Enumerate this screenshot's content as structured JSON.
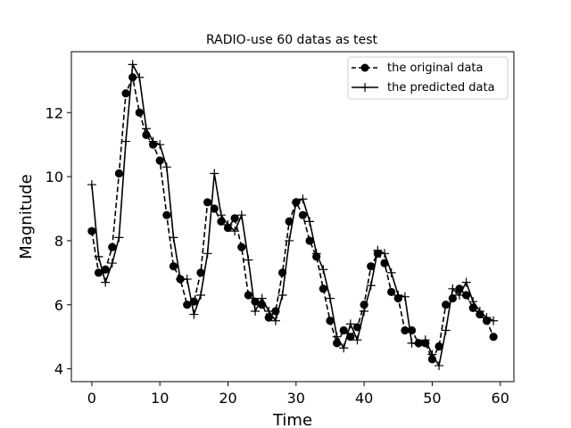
{
  "chart_data": {
    "type": "line",
    "title": "RADIO-use 60 datas as test",
    "xlabel": "Time",
    "ylabel": "Magnitude",
    "xlim": [
      -3,
      62
    ],
    "ylim": [
      3.6,
      13.9
    ],
    "xticks": [
      0,
      10,
      20,
      30,
      40,
      50,
      60
    ],
    "yticks": [
      4,
      6,
      8,
      10,
      12
    ],
    "xtick_labels": [
      "0",
      "10",
      "20",
      "30",
      "40",
      "50",
      "60"
    ],
    "ytick_labels": [
      "4",
      "6",
      "8",
      "10",
      "12"
    ],
    "grid": false,
    "legend_position": "top-right",
    "x": [
      0,
      1,
      2,
      3,
      4,
      5,
      6,
      7,
      8,
      9,
      10,
      11,
      12,
      13,
      14,
      15,
      16,
      17,
      18,
      19,
      20,
      21,
      22,
      23,
      24,
      25,
      26,
      27,
      28,
      29,
      30,
      31,
      32,
      33,
      34,
      35,
      36,
      37,
      38,
      39,
      40,
      41,
      42,
      43,
      44,
      45,
      46,
      47,
      48,
      49,
      50,
      51,
      52,
      53,
      54,
      55,
      56,
      57,
      58,
      59
    ],
    "series": [
      {
        "name": "the original data",
        "style": "dashed",
        "marker": "circle",
        "color": "#000000",
        "values": [
          8.3,
          7.0,
          7.1,
          7.8,
          10.1,
          12.6,
          13.1,
          12.0,
          11.3,
          11.0,
          10.5,
          8.8,
          7.2,
          6.8,
          6.0,
          6.1,
          7.0,
          9.2,
          9.0,
          8.6,
          8.4,
          8.7,
          7.8,
          6.3,
          6.1,
          6.0,
          5.6,
          5.8,
          7.0,
          8.6,
          9.2,
          8.8,
          8.0,
          7.5,
          6.5,
          5.5,
          4.8,
          5.2,
          5.0,
          5.3,
          6.0,
          7.2,
          7.6,
          7.3,
          6.4,
          6.2,
          5.2,
          5.2,
          4.8,
          4.8,
          4.3,
          4.7,
          6.0,
          6.2,
          6.5,
          6.3,
          5.9,
          5.7,
          5.5,
          5.0
        ]
      },
      {
        "name": "the predicted data",
        "style": "solid",
        "marker": "plus",
        "color": "#000000",
        "values": [
          9.75,
          7.5,
          6.7,
          7.3,
          8.1,
          11.1,
          13.5,
          13.1,
          11.5,
          11.1,
          11.0,
          10.3,
          8.1,
          6.8,
          6.8,
          5.7,
          6.3,
          7.6,
          10.1,
          8.8,
          8.5,
          8.3,
          8.8,
          7.4,
          5.8,
          6.2,
          5.8,
          5.5,
          6.3,
          8.0,
          9.2,
          9.3,
          8.6,
          7.6,
          7.1,
          6.2,
          5.0,
          4.65,
          5.4,
          4.9,
          5.8,
          6.6,
          7.7,
          7.6,
          7.0,
          6.3,
          6.25,
          4.8,
          4.8,
          4.9,
          4.45,
          4.1,
          5.2,
          6.5,
          6.3,
          6.7,
          6.1,
          5.8,
          5.6,
          5.5
        ]
      }
    ]
  }
}
